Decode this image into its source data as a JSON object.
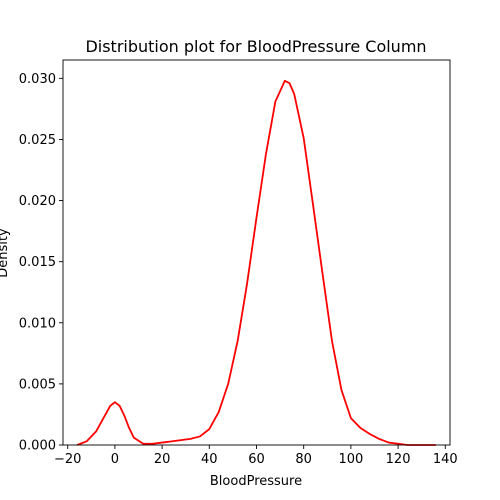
{
  "chart_data": {
    "type": "line",
    "title": "Distribution plot for BloodPressure Column",
    "xlabel": "BloodPressure",
    "ylabel": "Density",
    "xlim": [
      -22,
      142
    ],
    "ylim": [
      0,
      0.0315
    ],
    "grid": false,
    "x_ticks": [
      -20,
      0,
      20,
      40,
      60,
      80,
      100,
      120,
      140
    ],
    "x_tick_labels": [
      "−20",
      "0",
      "20",
      "40",
      "60",
      "80",
      "100",
      "120",
      "140"
    ],
    "y_ticks": [
      0,
      0.005,
      0.01,
      0.015,
      0.02,
      0.025,
      0.03
    ],
    "y_tick_labels": [
      "0.000",
      "0.005",
      "0.010",
      "0.015",
      "0.020",
      "0.025",
      "0.030"
    ],
    "series": [
      {
        "color": "#ff0000",
        "x": [
          -16,
          -12,
          -8,
          -4,
          -2,
          0,
          2,
          4,
          6,
          8,
          12,
          16,
          20,
          24,
          28,
          32,
          36,
          40,
          44,
          48,
          52,
          56,
          60,
          64,
          68,
          72,
          74,
          76,
          80,
          84,
          88,
          92,
          96,
          100,
          104,
          108,
          112,
          116,
          120,
          124,
          128,
          132,
          136
        ],
        "y": [
          0.0,
          0.0003,
          0.0011,
          0.0025,
          0.0032,
          0.0035,
          0.0032,
          0.0024,
          0.0014,
          0.0006,
          0.0001,
          0.0001,
          0.0002,
          0.0003,
          0.0004,
          0.0005,
          0.0007,
          0.0013,
          0.0027,
          0.005,
          0.0085,
          0.0132,
          0.0186,
          0.0238,
          0.0281,
          0.0298,
          0.0296,
          0.0287,
          0.0251,
          0.0196,
          0.014,
          0.0085,
          0.0045,
          0.0022,
          0.0014,
          0.0009,
          0.0005,
          0.0002,
          0.0001,
          0.0,
          0.0,
          0.0,
          0.0
        ]
      }
    ]
  }
}
